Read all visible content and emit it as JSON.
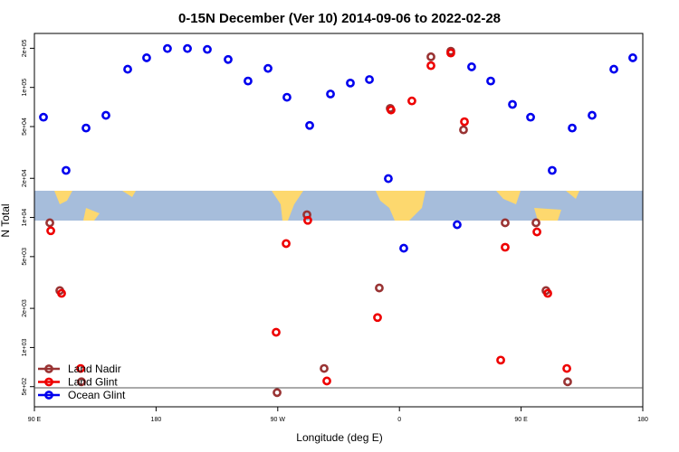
{
  "chart_data": {
    "type": "scatter",
    "title": "0-15N December (Ver 10)   2014-09-06 to 2022-02-28",
    "x_label": "Longitude (deg E)",
    "y_label": "N Total",
    "log_y": true,
    "xlim": [
      90,
      540
    ],
    "ylim": [
      350,
      260000
    ],
    "xticks": [
      {
        "value": 90,
        "label": "90 E"
      },
      180,
      {
        "value": 270,
        "label": "90 W"
      },
      {
        "value": 360,
        "label": "0"
      },
      {
        "value": 450,
        "label": "90 E"
      },
      {
        "value": 540,
        "label": "180"
      }
    ],
    "yticks": [
      {
        "value": 500,
        "label": "5e+02"
      },
      {
        "value": 1000,
        "label": "1e+03"
      },
      {
        "value": 2000,
        "label": "2e+03"
      },
      {
        "value": 5000,
        "label": "5e+03"
      },
      {
        "value": 10000,
        "label": "1e+04"
      },
      {
        "value": 20000,
        "label": "2e+04"
      },
      {
        "value": 50000,
        "label": "5e+04"
      },
      {
        "value": 100000,
        "label": "1e+05"
      },
      {
        "value": 200000,
        "label": "2e+05"
      }
    ],
    "legend": "bottom-left",
    "series": [
      {
        "name": "Land Nadir",
        "color": "#993333",
        "x": [
          101.4,
          108.8,
          124.8,
          269.5,
          291.6,
          304.3,
          345.1,
          353.2,
          383.3,
          398,
          407.4,
          438.2,
          461,
          468.4,
          484.4
        ],
        "values": [
          9100,
          2740,
          545,
          450,
          10500,
          690,
          2870,
          69000,
          172000,
          190000,
          47200,
          9100,
          9100,
          2740,
          545
        ]
      },
      {
        "name": "Land Glint",
        "color": "#ee0000",
        "x": [
          102.1,
          110.1,
          124.2,
          268.8,
          276.2,
          292.2,
          306.3,
          343.8,
          353.8,
          369.2,
          383.3,
          398,
          408.1,
          434.9,
          438.2,
          461.7,
          469.7,
          483.8
        ],
        "values": [
          7900,
          2610,
          690,
          1310,
          6300,
          9500,
          553,
          1700,
          67000,
          78700,
          147000,
          184000,
          54500,
          800,
          5900,
          7740,
          2610,
          690
        ]
      },
      {
        "name": "Ocean Glint",
        "color": "#0000ee",
        "x": [
          96.7,
          113.4,
          128.2,
          142.9,
          159,
          173,
          188.4,
          203.2,
          217.9,
          233.3,
          248,
          262.8,
          276.8,
          293.6,
          309,
          323.7,
          337.8,
          351.8,
          363.2,
          402.7,
          413.4,
          427.5,
          443.6,
          457,
          473,
          487.8,
          502.5,
          518.6,
          532.6
        ],
        "values": [
          59000,
          23000,
          48700,
          61000,
          138000,
          169000,
          199000,
          199000,
          196000,
          164000,
          112000,
          140000,
          84000,
          51000,
          89000,
          108000,
          115000,
          19900,
          5800,
          8800,
          144000,
          112000,
          74000,
          59000,
          23000,
          48700,
          61000,
          138000,
          169000
        ]
      }
    ]
  }
}
